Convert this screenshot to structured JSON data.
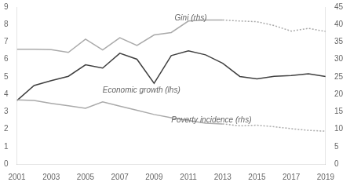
{
  "chart_data": {
    "type": "line",
    "x": [
      2001,
      2002,
      2003,
      2004,
      2005,
      2006,
      2007,
      2008,
      2009,
      2010,
      2011,
      2012,
      2013,
      2014,
      2015,
      2016,
      2017,
      2018,
      2019
    ],
    "series": [
      {
        "color": "#aaaaaa",
        "axis": "y2",
        "line_style": "solid",
        "values": [
          32.9,
          32.9,
          32.8,
          32.0,
          35.8,
          32.7,
          36.2,
          34.0,
          37.0,
          37.7,
          41.0,
          41.3,
          41.3,
          null,
          null,
          null,
          null,
          null,
          null
        ]
      },
      {
        "color": "#aaaaaa",
        "axis": "y2",
        "line_style": "dotted",
        "values": [
          null,
          null,
          null,
          null,
          null,
          null,
          null,
          null,
          null,
          null,
          null,
          null,
          41.3,
          41.0,
          40.8,
          39.7,
          38.1,
          38.9,
          38.0
        ]
      },
      {
        "color": "#aaaaaa",
        "axis": "y2",
        "line_style": "solid",
        "values": [
          18.4,
          18.2,
          17.4,
          16.7,
          16.0,
          17.8,
          16.6,
          15.4,
          14.2,
          13.3,
          12.5,
          11.7,
          11.5,
          null,
          null,
          null,
          null,
          null,
          null
        ]
      },
      {
        "color": "#aaaaaa",
        "axis": "y2",
        "line_style": "dotted",
        "values": [
          null,
          null,
          null,
          null,
          null,
          null,
          null,
          null,
          null,
          null,
          null,
          null,
          11.5,
          10.96,
          11.13,
          10.7,
          10.12,
          9.66,
          9.41
        ]
      },
      {
        "color": "#404040",
        "axis": "y",
        "line_style": "solid",
        "values": [
          3.64,
          4.5,
          4.78,
          5.03,
          5.69,
          5.5,
          6.35,
          6.01,
          4.63,
          6.22,
          6.49,
          6.26,
          5.78,
          5.02,
          4.88,
          5.03,
          5.07,
          5.17,
          5.02
        ]
      }
    ],
    "xlim": [
      2001,
      2019
    ],
    "xticks": [
      2001,
      2003,
      2005,
      2007,
      2009,
      2011,
      2013,
      2015,
      2017,
      2019
    ],
    "ylim": [
      0,
      9
    ],
    "yticks": [
      0,
      1,
      2,
      3,
      4,
      5,
      6,
      7,
      8,
      9
    ],
    "y2lim": [
      0,
      45
    ],
    "y2ticks": [
      0,
      5,
      10,
      15,
      20,
      25,
      30,
      35,
      40,
      45
    ],
    "grid": false,
    "annotations": [
      {
        "text": "Gini (rhs)",
        "x": 2010.2,
        "y": 8.35
      },
      {
        "text": "Economic growth (lhs)",
        "x": 2006.0,
        "y": 4.2
      },
      {
        "text": "Poverty incidence (rhs)",
        "x": 2010.0,
        "y": 2.5
      }
    ]
  }
}
